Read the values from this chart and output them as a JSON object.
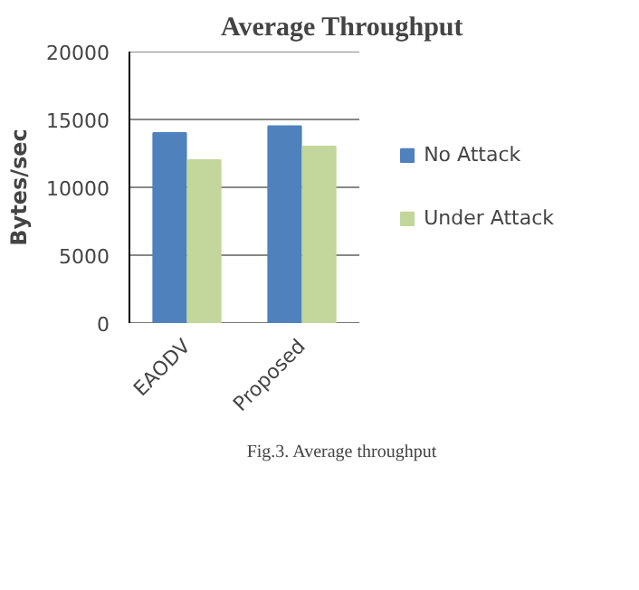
{
  "chart_data": {
    "type": "bar",
    "title": "Average Throughput",
    "ylabel": "Bytes/sec",
    "categories": [
      "EAODV",
      "Proposed"
    ],
    "series": [
      {
        "name": "No Attack",
        "color": "#4f81bd",
        "values": [
          14000,
          14500
        ]
      },
      {
        "name": "Under Attack",
        "color": "#c3d69b",
        "values": [
          12000,
          13000
        ]
      }
    ],
    "ylim": [
      0,
      20000
    ],
    "yticks": [
      0,
      5000,
      10000,
      15000,
      20000
    ],
    "grid": "y",
    "legend": "right",
    "annotations": [
      "Fig.3. Average throughput"
    ]
  }
}
